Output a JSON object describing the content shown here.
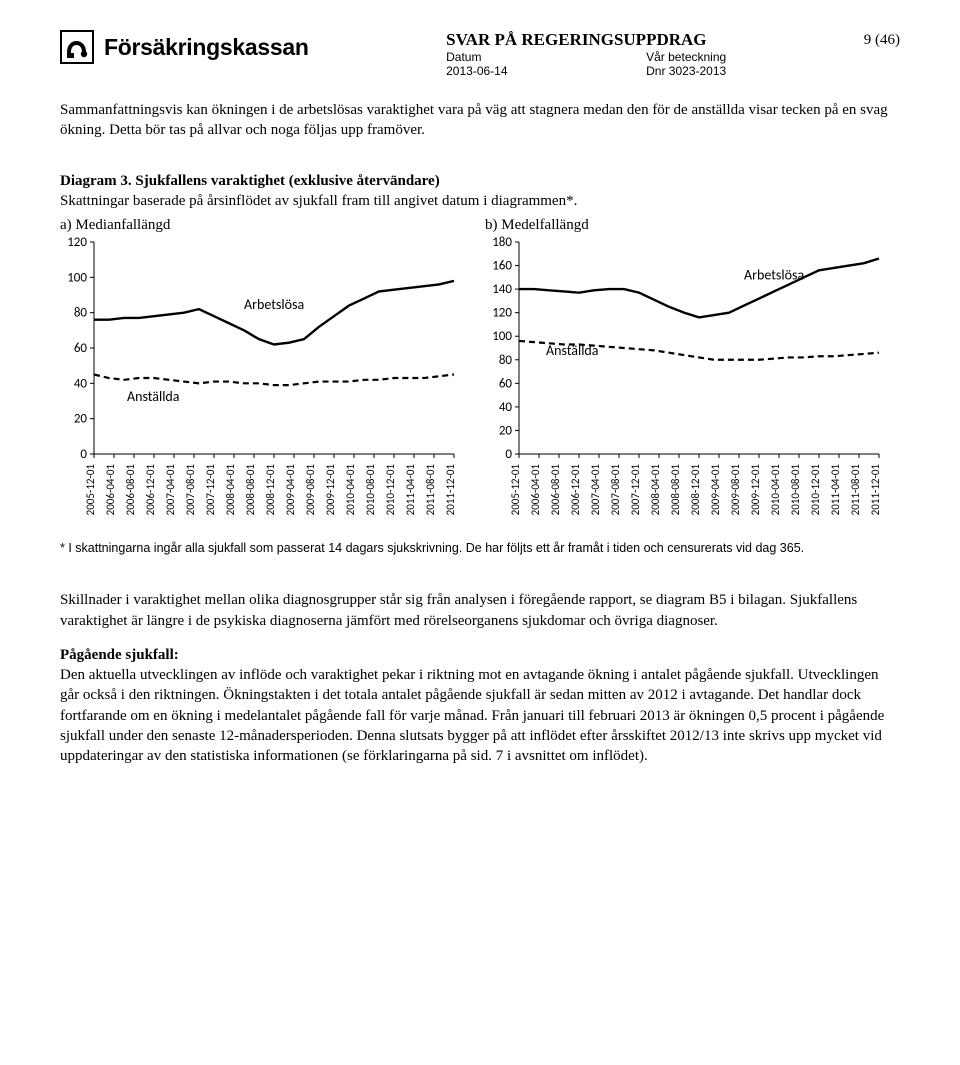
{
  "header": {
    "org_name": "Försäkringskassan",
    "doc_title": "SVAR PÅ REGERINGSUPPDRAG",
    "label_date": "Datum",
    "label_ref": "Vår beteckning",
    "value_date": "2013-06-14",
    "value_ref": "Dnr 3023-2013",
    "page_num": "9 (46)"
  },
  "intro_para": "Sammanfattningsvis kan ökningen i de arbetslösas varaktighet vara på väg att stagnera medan den för de anställda visar tecken på en svag ökning. Detta bör tas på allvar och noga följas upp framöver.",
  "diagram_caption": {
    "lead": "Diagram 3. Sjukfallens varaktighet (exklusive återvändare)",
    "sub": "Skattningar baserade på årsinflödet av sjukfall fram till angivet datum i diagrammen*."
  },
  "chart_a": {
    "title": "a) Medianfallängd",
    "type": "line",
    "ylim": [
      0,
      120
    ],
    "ytick_step": 20,
    "yticks": [
      0,
      20,
      40,
      60,
      80,
      100,
      120
    ],
    "xticks": [
      "2005-12-01",
      "2006-04-01",
      "2006-08-01",
      "2006-12-01",
      "2007-04-01",
      "2007-08-01",
      "2007-12-01",
      "2008-04-01",
      "2008-08-01",
      "2008-12-01",
      "2009-04-01",
      "2009-08-01",
      "2009-12-01",
      "2010-04-01",
      "2010-08-01",
      "2010-12-01",
      "2011-04-01",
      "2011-08-01",
      "2011-12-01"
    ],
    "series": [
      {
        "name": "Arbetslösa",
        "label_pos": {
          "x": 10,
          "y": 82
        },
        "color": "#000000",
        "dash": "none",
        "width": 2.4,
        "values": [
          76,
          76,
          77,
          77,
          78,
          79,
          80,
          82,
          78,
          74,
          70,
          65,
          62,
          63,
          65,
          72,
          78,
          84,
          88,
          92,
          93,
          94,
          95,
          96,
          98
        ]
      },
      {
        "name": "Anställda",
        "label_pos": {
          "x": 2.2,
          "y": 30
        },
        "color": "#000000",
        "dash": "6,4",
        "width": 2.2,
        "values": [
          45,
          43,
          42,
          43,
          43,
          42,
          41,
          40,
          41,
          41,
          40,
          40,
          39,
          39,
          40,
          41,
          41,
          41,
          42,
          42,
          43,
          43,
          43,
          44,
          45
        ]
      }
    ],
    "background_color": "#ffffff",
    "axis_color": "#000000",
    "label_fontsize": 13
  },
  "chart_b": {
    "title": "b) Medelfallängd",
    "type": "line",
    "ylim": [
      0,
      180
    ],
    "ytick_step": 20,
    "yticks": [
      0,
      20,
      40,
      60,
      80,
      100,
      120,
      140,
      160,
      180
    ],
    "xticks": [
      "2005-12-01",
      "2006-04-01",
      "2006-08-01",
      "2006-12-01",
      "2007-04-01",
      "2007-08-01",
      "2007-12-01",
      "2008-04-01",
      "2008-08-01",
      "2008-12-01",
      "2009-04-01",
      "2009-08-01",
      "2009-12-01",
      "2010-04-01",
      "2010-08-01",
      "2010-12-01",
      "2011-04-01",
      "2011-08-01",
      "2011-12-01"
    ],
    "series": [
      {
        "name": "Arbetslösa",
        "label_pos": {
          "x": 15,
          "y": 148
        },
        "color": "#000000",
        "dash": "none",
        "width": 2.4,
        "values": [
          140,
          140,
          139,
          138,
          137,
          139,
          140,
          140,
          137,
          131,
          125,
          120,
          116,
          118,
          120,
          126,
          132,
          138,
          144,
          150,
          156,
          158,
          160,
          162,
          166
        ]
      },
      {
        "name": "Anställda",
        "label_pos": {
          "x": 1.8,
          "y": 84
        },
        "color": "#000000",
        "dash": "6,4",
        "width": 2.2,
        "values": [
          96,
          95,
          94,
          93,
          93,
          92,
          91,
          90,
          89,
          88,
          86,
          84,
          82,
          80,
          80,
          80,
          80,
          81,
          82,
          82,
          83,
          83,
          84,
          85,
          86
        ]
      }
    ],
    "background_color": "#ffffff",
    "axis_color": "#000000",
    "label_fontsize": 13
  },
  "footnote": "* I skattningarna ingår alla sjukfall som passerat 14 dagars sjukskrivning. De har följts ett år framåt i tiden och censurerats vid dag 365.",
  "para1": "Skillnader i varaktighet mellan olika diagnosgrupper står sig från analysen i föregående rapport, se diagram B5 i bilagan. Sjukfallens varaktighet är längre i de psykiska diagnoserna jämfört med rörelseorganens sjukdomar och övriga diagnoser.",
  "para2_lead": "Pågående sjukfall:",
  "para2_body": "Den aktuella utvecklingen av inflöde och varaktighet pekar i riktning mot en avtagande ökning i antalet pågående sjukfall. Utvecklingen går också i den riktningen. Ökningstakten i det totala antalet pågående sjukfall är sedan mitten av 2012 i avtagande. Det handlar dock fortfarande om en ökning i medelantalet pågående fall för varje månad. Från januari till februari 2013 är ökningen 0,5 procent i pågående sjukfall under den senaste 12-månadersperioden. Denna slutsats bygger på att inflödet efter årsskiftet 2012/13 inte skrivs upp mycket vid uppdateringar av den statistiska informationen (se förklaringarna på sid. 7 i avsnittet om inflödet)."
}
